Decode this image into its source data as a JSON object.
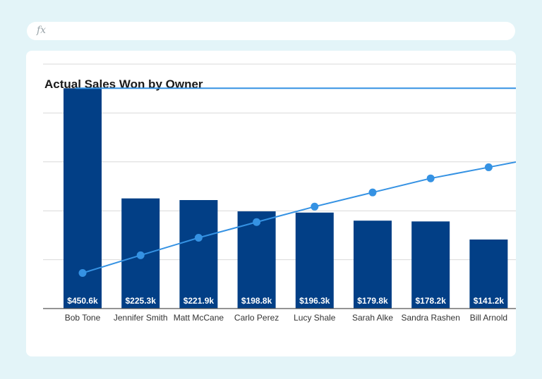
{
  "formula_bar": {
    "icon": "fx-icon",
    "label": "fx"
  },
  "chart_data": {
    "type": "bar",
    "title": "Actual Sales Won by Owner",
    "categories": [
      "Bob Tone",
      "Jennifer Smith",
      "Matt McCane",
      "Carlo Perez",
      "Lucy Shale",
      "Sarah Alke",
      "Sandra Rashen",
      "Bill Arnold"
    ],
    "values": [
      450.6,
      225.3,
      221.9,
      198.8,
      196.3,
      179.8,
      178.2,
      141.2
    ],
    "value_labels": [
      "$450.6k",
      "$225.3k",
      "$221.9k",
      "$198.8k",
      "$196.3k",
      "$179.8k",
      "$178.2k",
      "$141.2k"
    ],
    "bar_color": "#023f86",
    "line_series": {
      "type": "line",
      "values": [
        450.6,
        450.6,
        450.6,
        450.6,
        450.6,
        450.6,
        450.6,
        450.6
      ],
      "color": "#3592e3"
    },
    "cumulative_series": {
      "type": "line",
      "values": [
        72.7,
        109.0,
        144.8,
        176.9,
        208.5,
        237.5,
        266.3,
        289.0
      ],
      "color": "#3592e3",
      "markers": true
    },
    "ylim": [
      0,
      500
    ],
    "grid": true,
    "y_tick_labels_shown": false,
    "legend": "none"
  }
}
